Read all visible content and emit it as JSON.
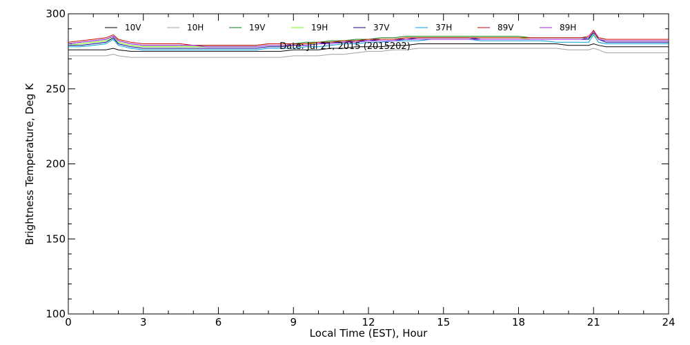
{
  "chart_data": {
    "type": "line",
    "title": "",
    "subtitle": "Date: Jul 21, 2015 (2015202)",
    "xlabel": "Local Time (EST), Hour",
    "ylabel": "Brightness Temperature, Deg  K",
    "xlim": [
      0,
      24
    ],
    "ylim": [
      100,
      300
    ],
    "xticks": [
      0,
      3,
      6,
      9,
      12,
      15,
      18,
      21,
      24
    ],
    "yticks": [
      100,
      150,
      200,
      250,
      300
    ],
    "grid": false,
    "legend_position": "top",
    "x": [
      0,
      0.5,
      1,
      1.5,
      1.8,
      2,
      2.5,
      3,
      3.5,
      4,
      4.5,
      5,
      5.5,
      6,
      6.5,
      7,
      7.5,
      8,
      8.5,
      9,
      9.5,
      10,
      10.5,
      11,
      11.5,
      12,
      12.5,
      13,
      13.5,
      14,
      14.5,
      15,
      15.5,
      16,
      16.5,
      17,
      17.5,
      18,
      18.5,
      19,
      19.5,
      20,
      20.5,
      20.8,
      21,
      21.2,
      21.5,
      22,
      22.5,
      23,
      23.5,
      24
    ],
    "series": [
      {
        "name": "10V",
        "color": "#000000",
        "values": [
          276,
          276,
          276,
          276,
          277,
          276,
          275,
          275,
          275,
          275,
          275,
          275,
          275,
          275,
          275,
          275,
          275,
          275,
          275,
          276,
          276,
          276,
          277,
          277,
          278,
          278,
          278,
          279,
          279,
          280,
          280,
          280,
          280,
          280,
          280,
          280,
          280,
          280,
          280,
          280,
          280,
          279,
          279,
          279,
          280,
          279,
          278,
          278,
          278,
          278,
          278,
          278
        ]
      },
      {
        "name": "10H",
        "color": "#a0a0a0",
        "values": [
          272,
          272,
          272,
          272,
          273,
          272,
          271,
          271,
          271,
          271,
          271,
          271,
          271,
          271,
          271,
          271,
          271,
          271,
          271,
          272,
          272,
          272,
          273,
          273,
          274,
          275,
          275,
          276,
          276,
          277,
          277,
          277,
          277,
          277,
          277,
          277,
          277,
          277,
          277,
          277,
          277,
          276,
          276,
          276,
          277,
          276,
          274,
          274,
          274,
          274,
          274,
          274
        ]
      },
      {
        "name": "19V",
        "color": "#008000",
        "values": [
          280,
          281,
          282,
          283,
          285,
          282,
          280,
          279,
          279,
          279,
          279,
          279,
          279,
          279,
          279,
          279,
          279,
          280,
          280,
          280,
          281,
          281,
          282,
          282,
          283,
          283,
          284,
          284,
          285,
          285,
          285,
          285,
          285,
          285,
          285,
          285,
          285,
          285,
          284,
          284,
          284,
          284,
          284,
          284,
          287,
          284,
          283,
          283,
          283,
          283,
          283,
          283
        ]
      },
      {
        "name": "19H",
        "color": "#7cfc00",
        "values": [
          279,
          280,
          281,
          282,
          284,
          281,
          279,
          278,
          278,
          278,
          278,
          278,
          278,
          278,
          278,
          278,
          278,
          279,
          279,
          279,
          280,
          280,
          281,
          281,
          282,
          282,
          283,
          283,
          284,
          284,
          284,
          284,
          284,
          284,
          284,
          284,
          284,
          284,
          283,
          283,
          283,
          283,
          283,
          283,
          286,
          283,
          282,
          282,
          282,
          282,
          282,
          282
        ]
      },
      {
        "name": "37V",
        "color": "#00008b",
        "values": [
          279,
          279,
          280,
          281,
          284,
          280,
          278,
          277,
          277,
          277,
          277,
          277,
          277,
          277,
          277,
          277,
          277,
          278,
          278,
          279,
          279,
          280,
          281,
          281,
          282,
          282,
          283,
          283,
          283,
          284,
          284,
          284,
          284,
          284,
          283,
          283,
          283,
          283,
          283,
          283,
          283,
          283,
          283,
          283,
          288,
          283,
          281,
          281,
          281,
          281,
          281,
          281
        ]
      },
      {
        "name": "37H",
        "color": "#00a0e0",
        "values": [
          278,
          278,
          279,
          280,
          283,
          279,
          277,
          276,
          276,
          276,
          276,
          276,
          276,
          276,
          276,
          276,
          276,
          277,
          277,
          277,
          278,
          278,
          279,
          280,
          280,
          281,
          281,
          282,
          282,
          282,
          283,
          283,
          283,
          283,
          282,
          282,
          282,
          282,
          282,
          282,
          281,
          281,
          281,
          281,
          286,
          281,
          280,
          280,
          280,
          280,
          280,
          280
        ]
      },
      {
        "name": "89V",
        "color": "#d00000",
        "values": [
          281,
          282,
          283,
          284,
          286,
          283,
          281,
          280,
          280,
          280,
          280,
          279,
          279,
          279,
          279,
          279,
          279,
          280,
          280,
          280,
          280,
          281,
          281,
          282,
          282,
          283,
          283,
          283,
          284,
          284,
          284,
          284,
          284,
          284,
          284,
          284,
          284,
          284,
          284,
          284,
          284,
          284,
          284,
          285,
          289,
          284,
          283,
          283,
          283,
          283,
          283,
          283
        ]
      },
      {
        "name": "89H",
        "color": "#a020f0",
        "values": [
          280,
          281,
          282,
          283,
          285,
          282,
          280,
          279,
          279,
          279,
          279,
          279,
          278,
          278,
          278,
          278,
          278,
          279,
          279,
          279,
          279,
          280,
          280,
          281,
          281,
          282,
          282,
          282,
          283,
          283,
          283,
          283,
          283,
          283,
          283,
          283,
          283,
          283,
          283,
          283,
          283,
          283,
          283,
          284,
          288,
          283,
          282,
          282,
          282,
          282,
          282,
          282
        ]
      }
    ]
  }
}
